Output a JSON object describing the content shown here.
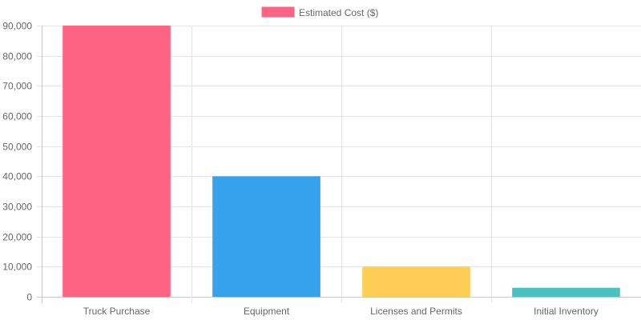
{
  "chart_data": {
    "type": "bar",
    "title": "",
    "xlabel": "",
    "ylabel": "",
    "categories": [
      "Truck Purchase",
      "Equipment",
      "Licenses and Permits",
      "Initial Inventory"
    ],
    "series": [
      {
        "name": "Estimated Cost ($)",
        "values": [
          90000,
          40000,
          10000,
          3000
        ],
        "colors": [
          "#ff6384",
          "#36a2eb",
          "#ffce56",
          "#4bc0c0"
        ]
      }
    ],
    "ylim": [
      0,
      90000
    ],
    "yticks": [
      "0",
      "10,000",
      "20,000",
      "30,000",
      "40,000",
      "50,000",
      "60,000",
      "70,000",
      "80,000",
      "90,000"
    ],
    "grid": true,
    "legend_position": "top"
  }
}
